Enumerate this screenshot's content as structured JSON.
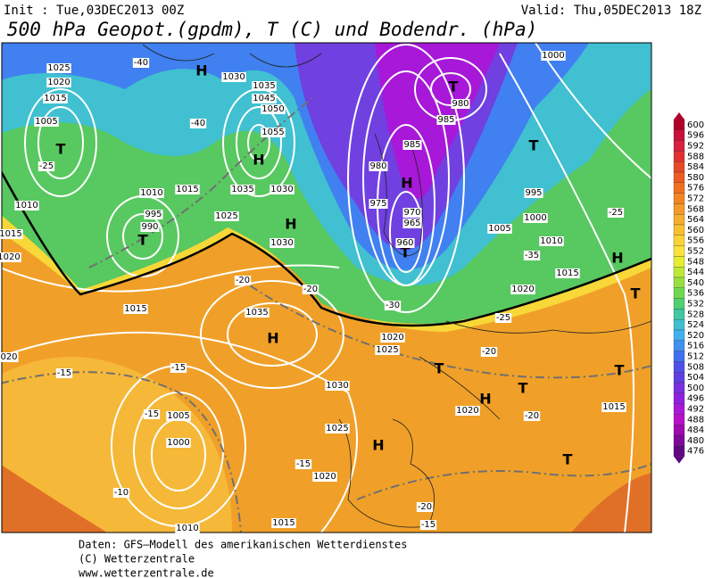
{
  "header": {
    "init": "Init : Tue,03DEC2013 00Z",
    "valid": "Valid: Thu,05DEC2013 18Z",
    "title": "500 hPa Geopot.(gpdm), T (C) und Bodendr. (hPa)"
  },
  "colorbar": {
    "labels": [
      "600",
      "596",
      "592",
      "588",
      "584",
      "580",
      "576",
      "572",
      "568",
      "564",
      "560",
      "556",
      "552",
      "548",
      "544",
      "540",
      "536",
      "532",
      "528",
      "524",
      "520",
      "516",
      "512",
      "508",
      "504",
      "500",
      "496",
      "492",
      "488",
      "484",
      "480",
      "476"
    ],
    "colors": [
      "#b0002a",
      "#c8103a",
      "#d82040",
      "#e03030",
      "#e84828",
      "#ec5c20",
      "#f07020",
      "#f28424",
      "#f49a28",
      "#f6ae2c",
      "#f8c030",
      "#fad236",
      "#fae23a",
      "#e8ec30",
      "#c0e838",
      "#98e040",
      "#70d850",
      "#50d070",
      "#40c8a0",
      "#40c0d0",
      "#40b0f0",
      "#4090f0",
      "#4070f0",
      "#5050e8",
      "#6040e0",
      "#7830e0",
      "#9020e0",
      "#a818d8",
      "#b810c8",
      "#a008b0",
      "#800898",
      "#600880"
    ]
  },
  "map": {
    "pressure_centers": [
      "T",
      "H",
      "H",
      "T",
      "H",
      "T",
      "H",
      "T",
      "T",
      "H",
      "T",
      "H",
      "H",
      "T",
      "H",
      "T",
      "T",
      "T"
    ],
    "labels": [
      "1025",
      "1020",
      "1015",
      "1005",
      "-25",
      "1030",
      "1035",
      "1045",
      "1050",
      "1055",
      "-40",
      "-40",
      "1015",
      "1010",
      "995",
      "990",
      "1025",
      "1035",
      "1030",
      "1030",
      "980",
      "985",
      "985",
      "980",
      "975",
      "970",
      "965",
      "960",
      "1000",
      "995",
      "1000",
      "1005",
      "1010",
      "1015",
      "1020",
      "1035",
      "1030",
      "1025",
      "1020",
      "1020",
      "1015",
      "1005",
      "1000",
      "-15",
      "-15",
      "-10",
      "-15",
      "-20",
      "-20",
      "-15",
      "1015",
      "1010",
      "-20",
      "-20",
      "-15",
      "-25",
      "-35",
      "-20",
      "-25",
      "-30",
      "1020",
      "1025",
      "1015",
      "1020",
      "1015",
      "1010",
      "020"
    ]
  },
  "footer": [
    "Daten: GFS–Modell des amerikanischen Wetterdienstes",
    "(C) Wetterzentrale",
    "www.wetterzentrale.de"
  ]
}
